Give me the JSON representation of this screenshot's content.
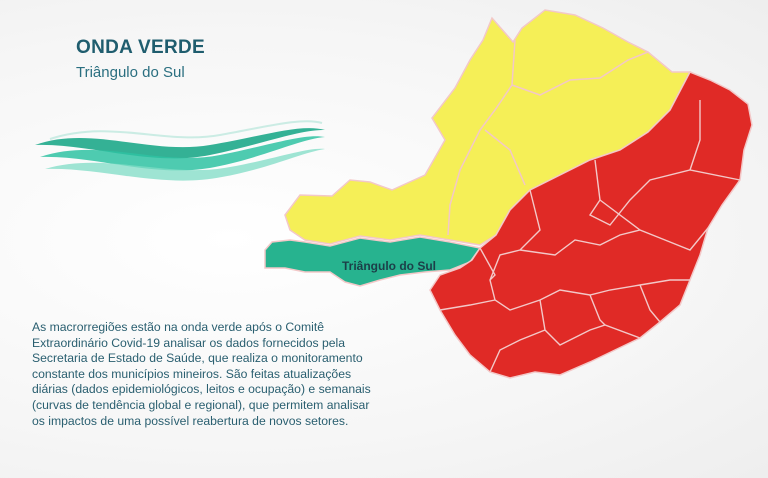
{
  "header": {
    "title": "ONDA VERDE",
    "subtitle": "Triângulo do Sul"
  },
  "map": {
    "highlight_label": "Triângulo do Sul",
    "colors": {
      "green_zone": "#27b38f",
      "yellow_zone": "#f5ef57",
      "red_zone": "#e02a26",
      "border": "#f3c8c8"
    }
  },
  "body": {
    "lines": [
      "As macrorregiões estão na onda verde após o Comitê",
      "Extraordinário Covid-19 analisar os dados fornecidos pela",
      "Secretaria de Estado de Saúde, que realiza o monitoramento",
      "constante dos municípios mineiros. São feitas atualizações",
      "diárias (dados epidemiológicos, leitos e ocupação) e semanais",
      "(curvas de tendência global e regional), que permitem analisar",
      "os impactos de uma possível reabertura de novos setores."
    ]
  }
}
